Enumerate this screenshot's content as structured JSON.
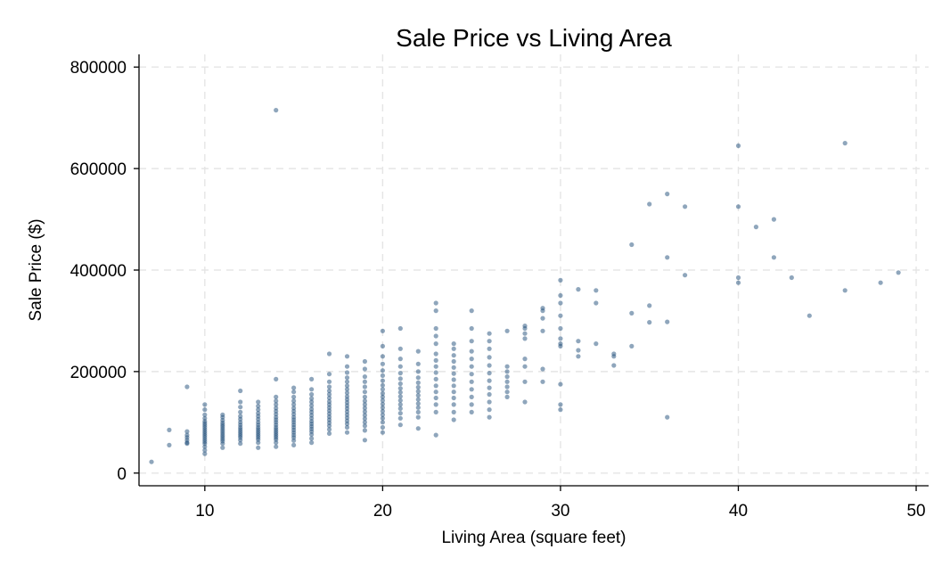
{
  "chart_data": {
    "type": "scatter",
    "title": "Sale Price vs Living Area",
    "xlabel": "Living Area (square feet)",
    "ylabel": "Sale Price ($)",
    "xlim": [
      6.3,
      50.7
    ],
    "ylim": [
      -25000,
      825000
    ],
    "x_ticks": [
      10,
      20,
      30,
      40,
      50
    ],
    "y_ticks": [
      0,
      200000,
      400000,
      600000,
      800000
    ],
    "grid": true,
    "legend": "none",
    "colors": {
      "point": "#1f4e79",
      "grid": "#e5e5e5",
      "axis": "#000000"
    },
    "points": [
      [
        7,
        22000
      ],
      [
        8,
        85000
      ],
      [
        8,
        55000
      ],
      [
        9,
        170000
      ],
      [
        9,
        82000
      ],
      [
        9,
        75000
      ],
      [
        9,
        70000
      ],
      [
        9,
        65000
      ],
      [
        9,
        60000
      ],
      [
        9,
        58000
      ],
      [
        10,
        135000
      ],
      [
        10,
        125000
      ],
      [
        10,
        115000
      ],
      [
        10,
        108000
      ],
      [
        10,
        102000
      ],
      [
        10,
        98000
      ],
      [
        10,
        94000
      ],
      [
        10,
        90000
      ],
      [
        10,
        86000
      ],
      [
        10,
        82000
      ],
      [
        10,
        78000
      ],
      [
        10,
        74000
      ],
      [
        10,
        70000
      ],
      [
        10,
        66000
      ],
      [
        10,
        62000
      ],
      [
        10,
        58000
      ],
      [
        10,
        52000
      ],
      [
        10,
        45000
      ],
      [
        10,
        38000
      ],
      [
        11,
        115000
      ],
      [
        11,
        110000
      ],
      [
        11,
        104000
      ],
      [
        11,
        99000
      ],
      [
        11,
        95000
      ],
      [
        11,
        91000
      ],
      [
        11,
        87000
      ],
      [
        11,
        83000
      ],
      [
        11,
        79000
      ],
      [
        11,
        75000
      ],
      [
        11,
        71000
      ],
      [
        11,
        67000
      ],
      [
        11,
        63000
      ],
      [
        11,
        58000
      ],
      [
        11,
        50000
      ],
      [
        12,
        162000
      ],
      [
        12,
        140000
      ],
      [
        12,
        130000
      ],
      [
        12,
        120000
      ],
      [
        12,
        112000
      ],
      [
        12,
        106000
      ],
      [
        12,
        100000
      ],
      [
        12,
        95000
      ],
      [
        12,
        90000
      ],
      [
        12,
        86000
      ],
      [
        12,
        82000
      ],
      [
        12,
        78000
      ],
      [
        12,
        74000
      ],
      [
        12,
        70000
      ],
      [
        12,
        65000
      ],
      [
        12,
        58000
      ],
      [
        13,
        140000
      ],
      [
        13,
        132000
      ],
      [
        13,
        125000
      ],
      [
        13,
        118000
      ],
      [
        13,
        112000
      ],
      [
        13,
        106000
      ],
      [
        13,
        100000
      ],
      [
        13,
        95000
      ],
      [
        13,
        90000
      ],
      [
        13,
        86000
      ],
      [
        13,
        82000
      ],
      [
        13,
        78000
      ],
      [
        13,
        74000
      ],
      [
        13,
        70000
      ],
      [
        13,
        66000
      ],
      [
        13,
        60000
      ],
      [
        13,
        50000
      ],
      [
        14,
        715000
      ],
      [
        14,
        185000
      ],
      [
        14,
        150000
      ],
      [
        14,
        142000
      ],
      [
        14,
        135000
      ],
      [
        14,
        128000
      ],
      [
        14,
        122000
      ],
      [
        14,
        116000
      ],
      [
        14,
        110000
      ],
      [
        14,
        105000
      ],
      [
        14,
        100000
      ],
      [
        14,
        95000
      ],
      [
        14,
        90000
      ],
      [
        14,
        86000
      ],
      [
        14,
        82000
      ],
      [
        14,
        78000
      ],
      [
        14,
        74000
      ],
      [
        14,
        70000
      ],
      [
        14,
        66000
      ],
      [
        14,
        60000
      ],
      [
        14,
        52000
      ],
      [
        15,
        168000
      ],
      [
        15,
        160000
      ],
      [
        15,
        150000
      ],
      [
        15,
        142000
      ],
      [
        15,
        135000
      ],
      [
        15,
        128000
      ],
      [
        15,
        122000
      ],
      [
        15,
        116000
      ],
      [
        15,
        110000
      ],
      [
        15,
        105000
      ],
      [
        15,
        100000
      ],
      [
        15,
        95000
      ],
      [
        15,
        90000
      ],
      [
        15,
        85000
      ],
      [
        15,
        80000
      ],
      [
        15,
        75000
      ],
      [
        15,
        70000
      ],
      [
        15,
        64000
      ],
      [
        15,
        55000
      ],
      [
        16,
        185000
      ],
      [
        16,
        165000
      ],
      [
        16,
        155000
      ],
      [
        16,
        147000
      ],
      [
        16,
        140000
      ],
      [
        16,
        133000
      ],
      [
        16,
        126000
      ],
      [
        16,
        120000
      ],
      [
        16,
        114000
      ],
      [
        16,
        108000
      ],
      [
        16,
        102000
      ],
      [
        16,
        97000
      ],
      [
        16,
        92000
      ],
      [
        16,
        87000
      ],
      [
        16,
        82000
      ],
      [
        16,
        76000
      ],
      [
        16,
        68000
      ],
      [
        16,
        60000
      ],
      [
        17,
        235000
      ],
      [
        17,
        195000
      ],
      [
        17,
        180000
      ],
      [
        17,
        170000
      ],
      [
        17,
        162000
      ],
      [
        17,
        155000
      ],
      [
        17,
        148000
      ],
      [
        17,
        141000
      ],
      [
        17,
        135000
      ],
      [
        17,
        129000
      ],
      [
        17,
        123000
      ],
      [
        17,
        117000
      ],
      [
        17,
        111000
      ],
      [
        17,
        105000
      ],
      [
        17,
        99000
      ],
      [
        17,
        93000
      ],
      [
        17,
        86000
      ],
      [
        17,
        78000
      ],
      [
        18,
        230000
      ],
      [
        18,
        210000
      ],
      [
        18,
        198000
      ],
      [
        18,
        188000
      ],
      [
        18,
        180000
      ],
      [
        18,
        172000
      ],
      [
        18,
        165000
      ],
      [
        18,
        158000
      ],
      [
        18,
        151000
      ],
      [
        18,
        145000
      ],
      [
        18,
        139000
      ],
      [
        18,
        133000
      ],
      [
        18,
        127000
      ],
      [
        18,
        121000
      ],
      [
        18,
        115000
      ],
      [
        18,
        109000
      ],
      [
        18,
        103000
      ],
      [
        18,
        97000
      ],
      [
        18,
        90000
      ],
      [
        18,
        80000
      ],
      [
        19,
        220000
      ],
      [
        19,
        205000
      ],
      [
        19,
        190000
      ],
      [
        19,
        180000
      ],
      [
        19,
        170000
      ],
      [
        19,
        160000
      ],
      [
        19,
        150000
      ],
      [
        19,
        142000
      ],
      [
        19,
        135000
      ],
      [
        19,
        128000
      ],
      [
        19,
        121000
      ],
      [
        19,
        114000
      ],
      [
        19,
        107000
      ],
      [
        19,
        100000
      ],
      [
        19,
        93000
      ],
      [
        19,
        84000
      ],
      [
        19,
        65000
      ],
      [
        20,
        280000
      ],
      [
        20,
        250000
      ],
      [
        20,
        230000
      ],
      [
        20,
        215000
      ],
      [
        20,
        202000
      ],
      [
        20,
        192000
      ],
      [
        20,
        182000
      ],
      [
        20,
        173000
      ],
      [
        20,
        165000
      ],
      [
        20,
        157000
      ],
      [
        20,
        150000
      ],
      [
        20,
        143000
      ],
      [
        20,
        136000
      ],
      [
        20,
        129000
      ],
      [
        20,
        122000
      ],
      [
        20,
        115000
      ],
      [
        20,
        108000
      ],
      [
        20,
        100000
      ],
      [
        20,
        90000
      ],
      [
        20,
        80000
      ],
      [
        21,
        285000
      ],
      [
        21,
        245000
      ],
      [
        21,
        225000
      ],
      [
        21,
        210000
      ],
      [
        21,
        197000
      ],
      [
        21,
        186000
      ],
      [
        21,
        176000
      ],
      [
        21,
        167000
      ],
      [
        21,
        159000
      ],
      [
        21,
        151000
      ],
      [
        21,
        143000
      ],
      [
        21,
        135000
      ],
      [
        21,
        127000
      ],
      [
        21,
        118000
      ],
      [
        21,
        108000
      ],
      [
        21,
        95000
      ],
      [
        22,
        240000
      ],
      [
        22,
        215000
      ],
      [
        22,
        200000
      ],
      [
        22,
        188000
      ],
      [
        22,
        178000
      ],
      [
        22,
        169000
      ],
      [
        22,
        161000
      ],
      [
        22,
        153000
      ],
      [
        22,
        145000
      ],
      [
        22,
        137000
      ],
      [
        22,
        129000
      ],
      [
        22,
        120000
      ],
      [
        22,
        110000
      ],
      [
        22,
        88000
      ],
      [
        23,
        335000
      ],
      [
        23,
        320000
      ],
      [
        23,
        285000
      ],
      [
        23,
        270000
      ],
      [
        23,
        255000
      ],
      [
        23,
        235000
      ],
      [
        23,
        222000
      ],
      [
        23,
        210000
      ],
      [
        23,
        198000
      ],
      [
        23,
        185000
      ],
      [
        23,
        172000
      ],
      [
        23,
        160000
      ],
      [
        23,
        148000
      ],
      [
        23,
        135000
      ],
      [
        23,
        120000
      ],
      [
        23,
        75000
      ],
      [
        24,
        255000
      ],
      [
        24,
        245000
      ],
      [
        24,
        232000
      ],
      [
        24,
        220000
      ],
      [
        24,
        208000
      ],
      [
        24,
        196000
      ],
      [
        24,
        184000
      ],
      [
        24,
        172000
      ],
      [
        24,
        160000
      ],
      [
        24,
        148000
      ],
      [
        24,
        135000
      ],
      [
        24,
        120000
      ],
      [
        24,
        105000
      ],
      [
        25,
        320000
      ],
      [
        25,
        285000
      ],
      [
        25,
        260000
      ],
      [
        25,
        240000
      ],
      [
        25,
        225000
      ],
      [
        25,
        210000
      ],
      [
        25,
        195000
      ],
      [
        25,
        180000
      ],
      [
        25,
        165000
      ],
      [
        25,
        150000
      ],
      [
        25,
        135000
      ],
      [
        25,
        120000
      ],
      [
        26,
        275000
      ],
      [
        26,
        260000
      ],
      [
        26,
        245000
      ],
      [
        26,
        228000
      ],
      [
        26,
        212000
      ],
      [
        26,
        197000
      ],
      [
        26,
        182000
      ],
      [
        26,
        168000
      ],
      [
        26,
        155000
      ],
      [
        26,
        140000
      ],
      [
        26,
        125000
      ],
      [
        26,
        110000
      ],
      [
        27,
        280000
      ],
      [
        27,
        210000
      ],
      [
        27,
        200000
      ],
      [
        27,
        190000
      ],
      [
        27,
        180000
      ],
      [
        27,
        170000
      ],
      [
        27,
        160000
      ],
      [
        27,
        150000
      ],
      [
        28,
        290000
      ],
      [
        28,
        285000
      ],
      [
        28,
        275000
      ],
      [
        28,
        265000
      ],
      [
        28,
        225000
      ],
      [
        28,
        210000
      ],
      [
        28,
        180000
      ],
      [
        28,
        140000
      ],
      [
        29,
        325000
      ],
      [
        29,
        320000
      ],
      [
        29,
        305000
      ],
      [
        29,
        280000
      ],
      [
        29,
        205000
      ],
      [
        29,
        180000
      ],
      [
        30,
        380000
      ],
      [
        30,
        350000
      ],
      [
        30,
        335000
      ],
      [
        30,
        310000
      ],
      [
        30,
        285000
      ],
      [
        30,
        265000
      ],
      [
        30,
        255000
      ],
      [
        30,
        250000
      ],
      [
        30,
        175000
      ],
      [
        30,
        135000
      ],
      [
        30,
        125000
      ],
      [
        31,
        362000
      ],
      [
        31,
        260000
      ],
      [
        31,
        242000
      ],
      [
        31,
        230000
      ],
      [
        32,
        360000
      ],
      [
        32,
        335000
      ],
      [
        32,
        255000
      ],
      [
        33,
        235000
      ],
      [
        33,
        230000
      ],
      [
        33,
        212000
      ],
      [
        34,
        450000
      ],
      [
        34,
        315000
      ],
      [
        34,
        250000
      ],
      [
        35,
        530000
      ],
      [
        35,
        330000
      ],
      [
        35,
        297000
      ],
      [
        36,
        550000
      ],
      [
        36,
        425000
      ],
      [
        36,
        298000
      ],
      [
        36,
        110000
      ],
      [
        37,
        525000
      ],
      [
        37,
        390000
      ],
      [
        40,
        645000
      ],
      [
        40,
        525000
      ],
      [
        40,
        385000
      ],
      [
        40,
        375000
      ],
      [
        41,
        485000
      ],
      [
        42,
        500000
      ],
      [
        42,
        425000
      ],
      [
        43,
        385000
      ],
      [
        44,
        310000
      ],
      [
        46,
        650000
      ],
      [
        46,
        360000
      ],
      [
        48,
        375000
      ],
      [
        49,
        395000
      ]
    ]
  }
}
